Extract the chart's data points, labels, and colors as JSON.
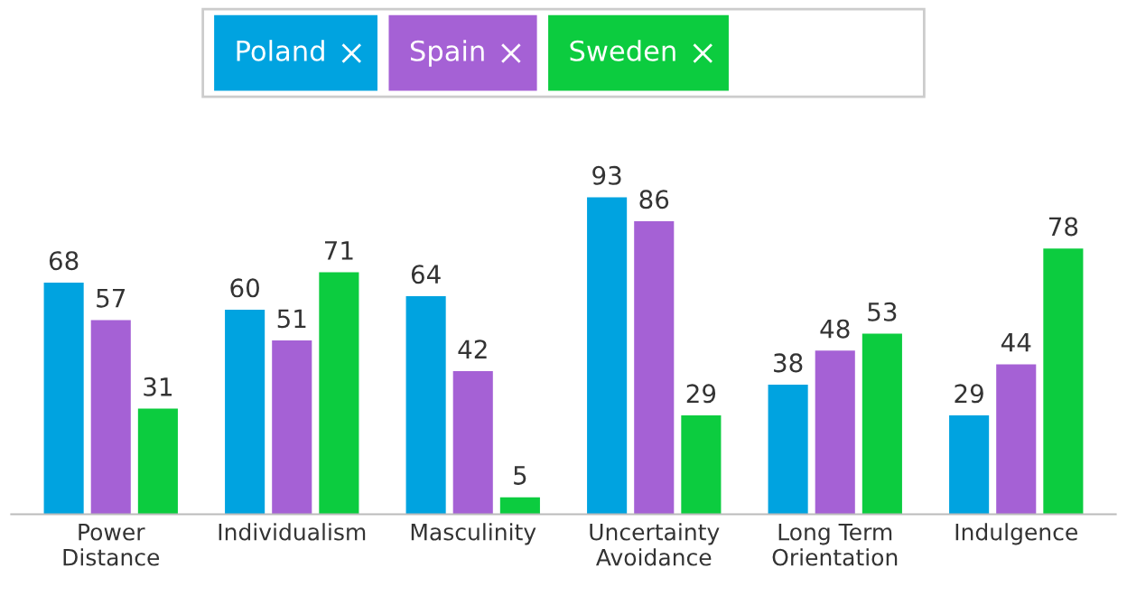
{
  "chart_data": {
    "type": "bar",
    "categories": [
      "Power\nDistance",
      "Individualism",
      "Masculinity",
      "Uncertainty\nAvoidance",
      "Long Term\nOrientation",
      "Indulgence"
    ],
    "series": [
      {
        "name": "Poland",
        "color": "#00a3e0",
        "values": [
          68,
          60,
          64,
          93,
          38,
          29
        ]
      },
      {
        "name": "Spain",
        "color": "#a561d5",
        "values": [
          57,
          51,
          42,
          86,
          48,
          44
        ]
      },
      {
        "name": "Sweden",
        "color": "#0ccc3f",
        "values": [
          31,
          71,
          5,
          29,
          53,
          78
        ]
      }
    ],
    "data_labels": true,
    "legend": "top",
    "grid": false,
    "tick_labels": "x"
  }
}
